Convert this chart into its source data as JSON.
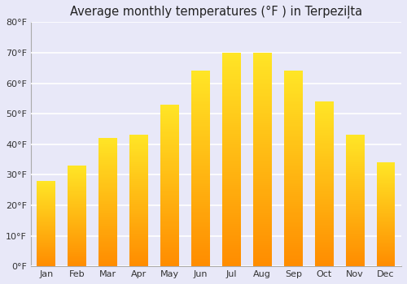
{
  "title": "Average monthly temperatures (°F ) in Terpeziļta",
  "months": [
    "Jan",
    "Feb",
    "Mar",
    "Apr",
    "May",
    "Jun",
    "Jul",
    "Aug",
    "Sep",
    "Oct",
    "Nov",
    "Dec"
  ],
  "values": [
    28,
    33,
    42,
    43,
    53,
    64,
    70,
    70,
    64,
    54,
    43,
    34
  ],
  "ylim": [
    0,
    80
  ],
  "yticks": [
    0,
    10,
    20,
    30,
    40,
    50,
    60,
    70,
    80
  ],
  "bar_color": "#FFA500",
  "bar_highlight": "#FFD966",
  "background_color": "#e8e8f8",
  "grid_color": "#ffffff",
  "title_fontsize": 10.5,
  "figsize": [
    5.0,
    3.5
  ],
  "dpi": 100
}
